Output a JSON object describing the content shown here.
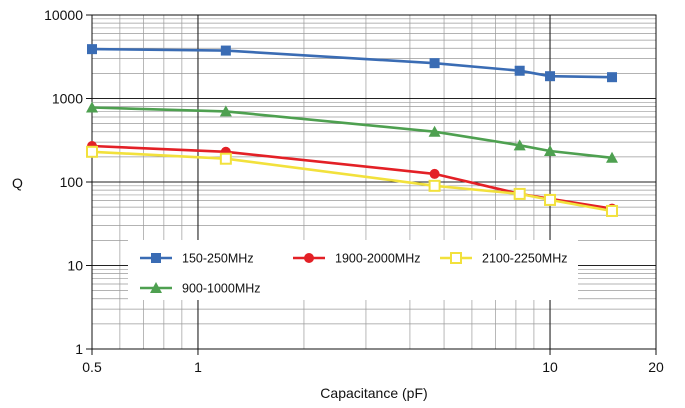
{
  "chart_data": {
    "type": "line",
    "xlabel": "Capacitance (pF)",
    "ylabel": "Q",
    "xscale": "log",
    "yscale": "log",
    "xlim": [
      0.5,
      20
    ],
    "ylim": [
      1,
      10000
    ],
    "grid": true,
    "legend_position": "lower-left",
    "x_ticks": [
      {
        "value": 0.5,
        "label": "0.5"
      },
      {
        "value": 1,
        "label": "1"
      },
      {
        "value": 10,
        "label": "10"
      },
      {
        "value": 20,
        "label": "20"
      }
    ],
    "y_ticks": [
      {
        "value": 1,
        "label": "1"
      },
      {
        "value": 10,
        "label": "10"
      },
      {
        "value": 100,
        "label": "100"
      },
      {
        "value": 1000,
        "label": "1000"
      },
      {
        "value": 10000,
        "label": "10000"
      }
    ],
    "series": [
      {
        "name": "150-250MHz",
        "color": "#3a6cb4",
        "marker": "square",
        "x": [
          0.5,
          1.2,
          4.7,
          8.2,
          10,
          15
        ],
        "y": [
          3900,
          3750,
          2650,
          2150,
          1850,
          1800
        ]
      },
      {
        "name": "900-1000MHz",
        "color": "#4ea050",
        "marker": "triangle",
        "x": [
          0.5,
          1.2,
          4.7,
          8.2,
          10,
          15
        ],
        "y": [
          780,
          700,
          400,
          275,
          235,
          195
        ]
      },
      {
        "name": "1900-2000MHz",
        "color": "#e32026",
        "marker": "circle",
        "x": [
          0.5,
          1.2,
          4.7,
          8.2,
          10,
          15
        ],
        "y": [
          270,
          230,
          125,
          72,
          63,
          48
        ]
      },
      {
        "name": "2100-2250MHz",
        "color": "#f2e13c",
        "marker": "open-square",
        "x": [
          0.5,
          1.2,
          4.7,
          8.2,
          10,
          15
        ],
        "y": [
          230,
          190,
          90,
          72,
          61,
          45
        ]
      }
    ]
  }
}
